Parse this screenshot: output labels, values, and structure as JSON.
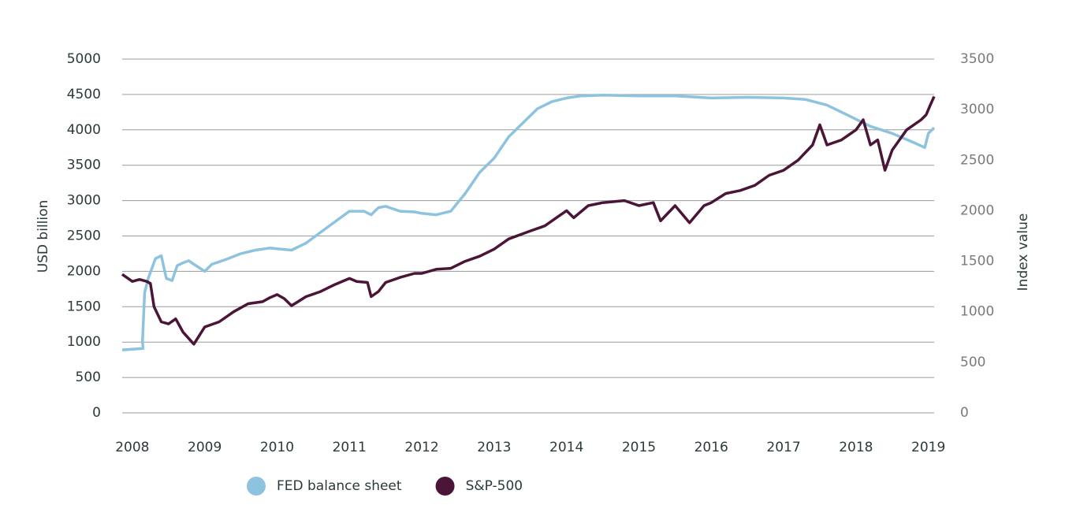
{
  "chart_data": {
    "type": "line",
    "y_label": "USD billion",
    "y2_label": "Index value",
    "xlim": [
      2007.86,
      2019.08
    ],
    "xticks": [
      2008,
      2009,
      2010,
      2011,
      2012,
      2013,
      2014,
      2015,
      2016,
      2017,
      2018,
      2019
    ],
    "ylim": [
      0,
      5000
    ],
    "yticks": [
      0,
      500,
      1000,
      1500,
      2000,
      2500,
      3000,
      3500,
      4000,
      4500,
      5000
    ],
    "y2lim": [
      0,
      3500
    ],
    "y2ticks": [
      0,
      500,
      1000,
      1500,
      2000,
      2500,
      3000,
      3500
    ],
    "grid": true,
    "legend": "bottom-left",
    "series": [
      {
        "name": "FED balance sheet",
        "color": "#8dc3df",
        "axis": "y",
        "x": [
          2007.86,
          2008.0,
          2008.15,
          2008.14,
          2008.17,
          2008.22,
          2008.32,
          2008.4,
          2008.47,
          2008.55,
          2008.62,
          2008.7,
          2008.78,
          2008.85,
          2009.0,
          2009.1,
          2009.3,
          2009.5,
          2009.7,
          2009.9,
          2010.0,
          2010.2,
          2010.4,
          2010.6,
          2010.8,
          2011.0,
          2011.2,
          2011.3,
          2011.4,
          2011.5,
          2011.7,
          2011.9,
          2012.0,
          2012.2,
          2012.4,
          2012.6,
          2012.8,
          2013.0,
          2013.2,
          2013.4,
          2013.6,
          2013.8,
          2014.0,
          2014.2,
          2014.5,
          2015.0,
          2015.5,
          2016.0,
          2016.5,
          2017.0,
          2017.3,
          2017.6,
          2017.9,
          2018.2,
          2018.5,
          2018.8,
          2018.95,
          2019.0,
          2019.08
        ],
        "values": [
          890,
          900,
          910,
          1000,
          1700,
          1900,
          2180,
          2220,
          1900,
          1870,
          2080,
          2120,
          2150,
          2100,
          2000,
          2100,
          2170,
          2250,
          2300,
          2330,
          2320,
          2300,
          2400,
          2550,
          2700,
          2850,
          2850,
          2800,
          2900,
          2920,
          2850,
          2840,
          2820,
          2800,
          2850,
          3100,
          3400,
          3600,
          3900,
          4100,
          4300,
          4400,
          4450,
          4480,
          4490,
          4480,
          4480,
          4450,
          4460,
          4450,
          4430,
          4350,
          4200,
          4050,
          3950,
          3820,
          3750,
          3950,
          4030
        ]
      },
      {
        "name": "S&P-500",
        "color": "#4a1537",
        "axis": "y2",
        "x": [
          2007.86,
          2008.0,
          2008.1,
          2008.2,
          2008.25,
          2008.3,
          2008.4,
          2008.5,
          2008.6,
          2008.7,
          2008.85,
          2009.0,
          2009.2,
          2009.4,
          2009.6,
          2009.8,
          2009.9,
          2010.0,
          2010.1,
          2010.2,
          2010.4,
          2010.6,
          2010.8,
          2011.0,
          2011.1,
          2011.25,
          2011.3,
          2011.4,
          2011.5,
          2011.7,
          2011.9,
          2012.0,
          2012.2,
          2012.4,
          2012.6,
          2012.8,
          2013.0,
          2013.2,
          2013.5,
          2013.7,
          2013.9,
          2014.0,
          2014.1,
          2014.3,
          2014.5,
          2014.8,
          2015.0,
          2015.2,
          2015.3,
          2015.5,
          2015.7,
          2015.9,
          2016.0,
          2016.2,
          2016.4,
          2016.6,
          2016.8,
          2017.0,
          2017.2,
          2017.4,
          2017.5,
          2017.6,
          2017.8,
          2018.0,
          2018.1,
          2018.2,
          2018.3,
          2018.4,
          2018.5,
          2018.7,
          2018.9,
          2018.97,
          2019.03,
          2019.08
        ],
        "values": [
          1370,
          1300,
          1320,
          1300,
          1280,
          1050,
          900,
          880,
          930,
          800,
          680,
          850,
          900,
          1000,
          1080,
          1100,
          1140,
          1170,
          1130,
          1060,
          1150,
          1200,
          1270,
          1330,
          1300,
          1290,
          1150,
          1200,
          1290,
          1340,
          1380,
          1380,
          1420,
          1430,
          1500,
          1550,
          1620,
          1720,
          1800,
          1850,
          1950,
          2000,
          1930,
          2050,
          2080,
          2100,
          2050,
          2080,
          1900,
          2050,
          1880,
          2050,
          2080,
          2170,
          2200,
          2250,
          2350,
          2400,
          2500,
          2650,
          2850,
          2650,
          2700,
          2800,
          2900,
          2650,
          2700,
          2400,
          2600,
          2800,
          2900,
          2950,
          3050,
          3130
        ]
      }
    ]
  }
}
